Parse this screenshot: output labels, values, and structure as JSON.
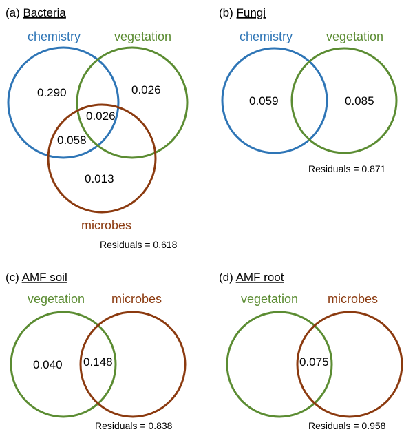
{
  "colors": {
    "chemistry": "#2e75b6",
    "vegetation": "#5b8c32",
    "microbes": "#8b3a0f"
  },
  "panels": {
    "a": {
      "letter": "(a)",
      "name": "Bacteria",
      "labels": {
        "chemistry": "chemistry",
        "vegetation": "vegetation",
        "microbes": "microbes"
      },
      "values": {
        "chemistry_only": "0.290",
        "vegetation_only": "0.026",
        "all_three": "0.026",
        "chemistry_microbes": "0.058",
        "microbes_only": "0.013"
      },
      "residuals": "Residuals = 0.618"
    },
    "b": {
      "letter": "(b)",
      "name": "Fungi",
      "labels": {
        "chemistry": "chemistry",
        "vegetation": "vegetation"
      },
      "values": {
        "chemistry_only": "0.059",
        "vegetation_only": "0.085"
      },
      "residuals": "Residuals = 0.871"
    },
    "c": {
      "letter": "(c)",
      "name": "AMF soil",
      "labels": {
        "vegetation": "vegetation",
        "microbes": "microbes"
      },
      "values": {
        "vegetation_only": "0.040",
        "shared": "0.148"
      },
      "residuals": "Residuals = 0.838"
    },
    "d": {
      "letter": "(d)",
      "name": "AMF root",
      "labels": {
        "vegetation": "vegetation",
        "microbes": "microbes"
      },
      "values": {
        "shared": "0.075"
      },
      "residuals": "Residuals = 0.958"
    }
  }
}
